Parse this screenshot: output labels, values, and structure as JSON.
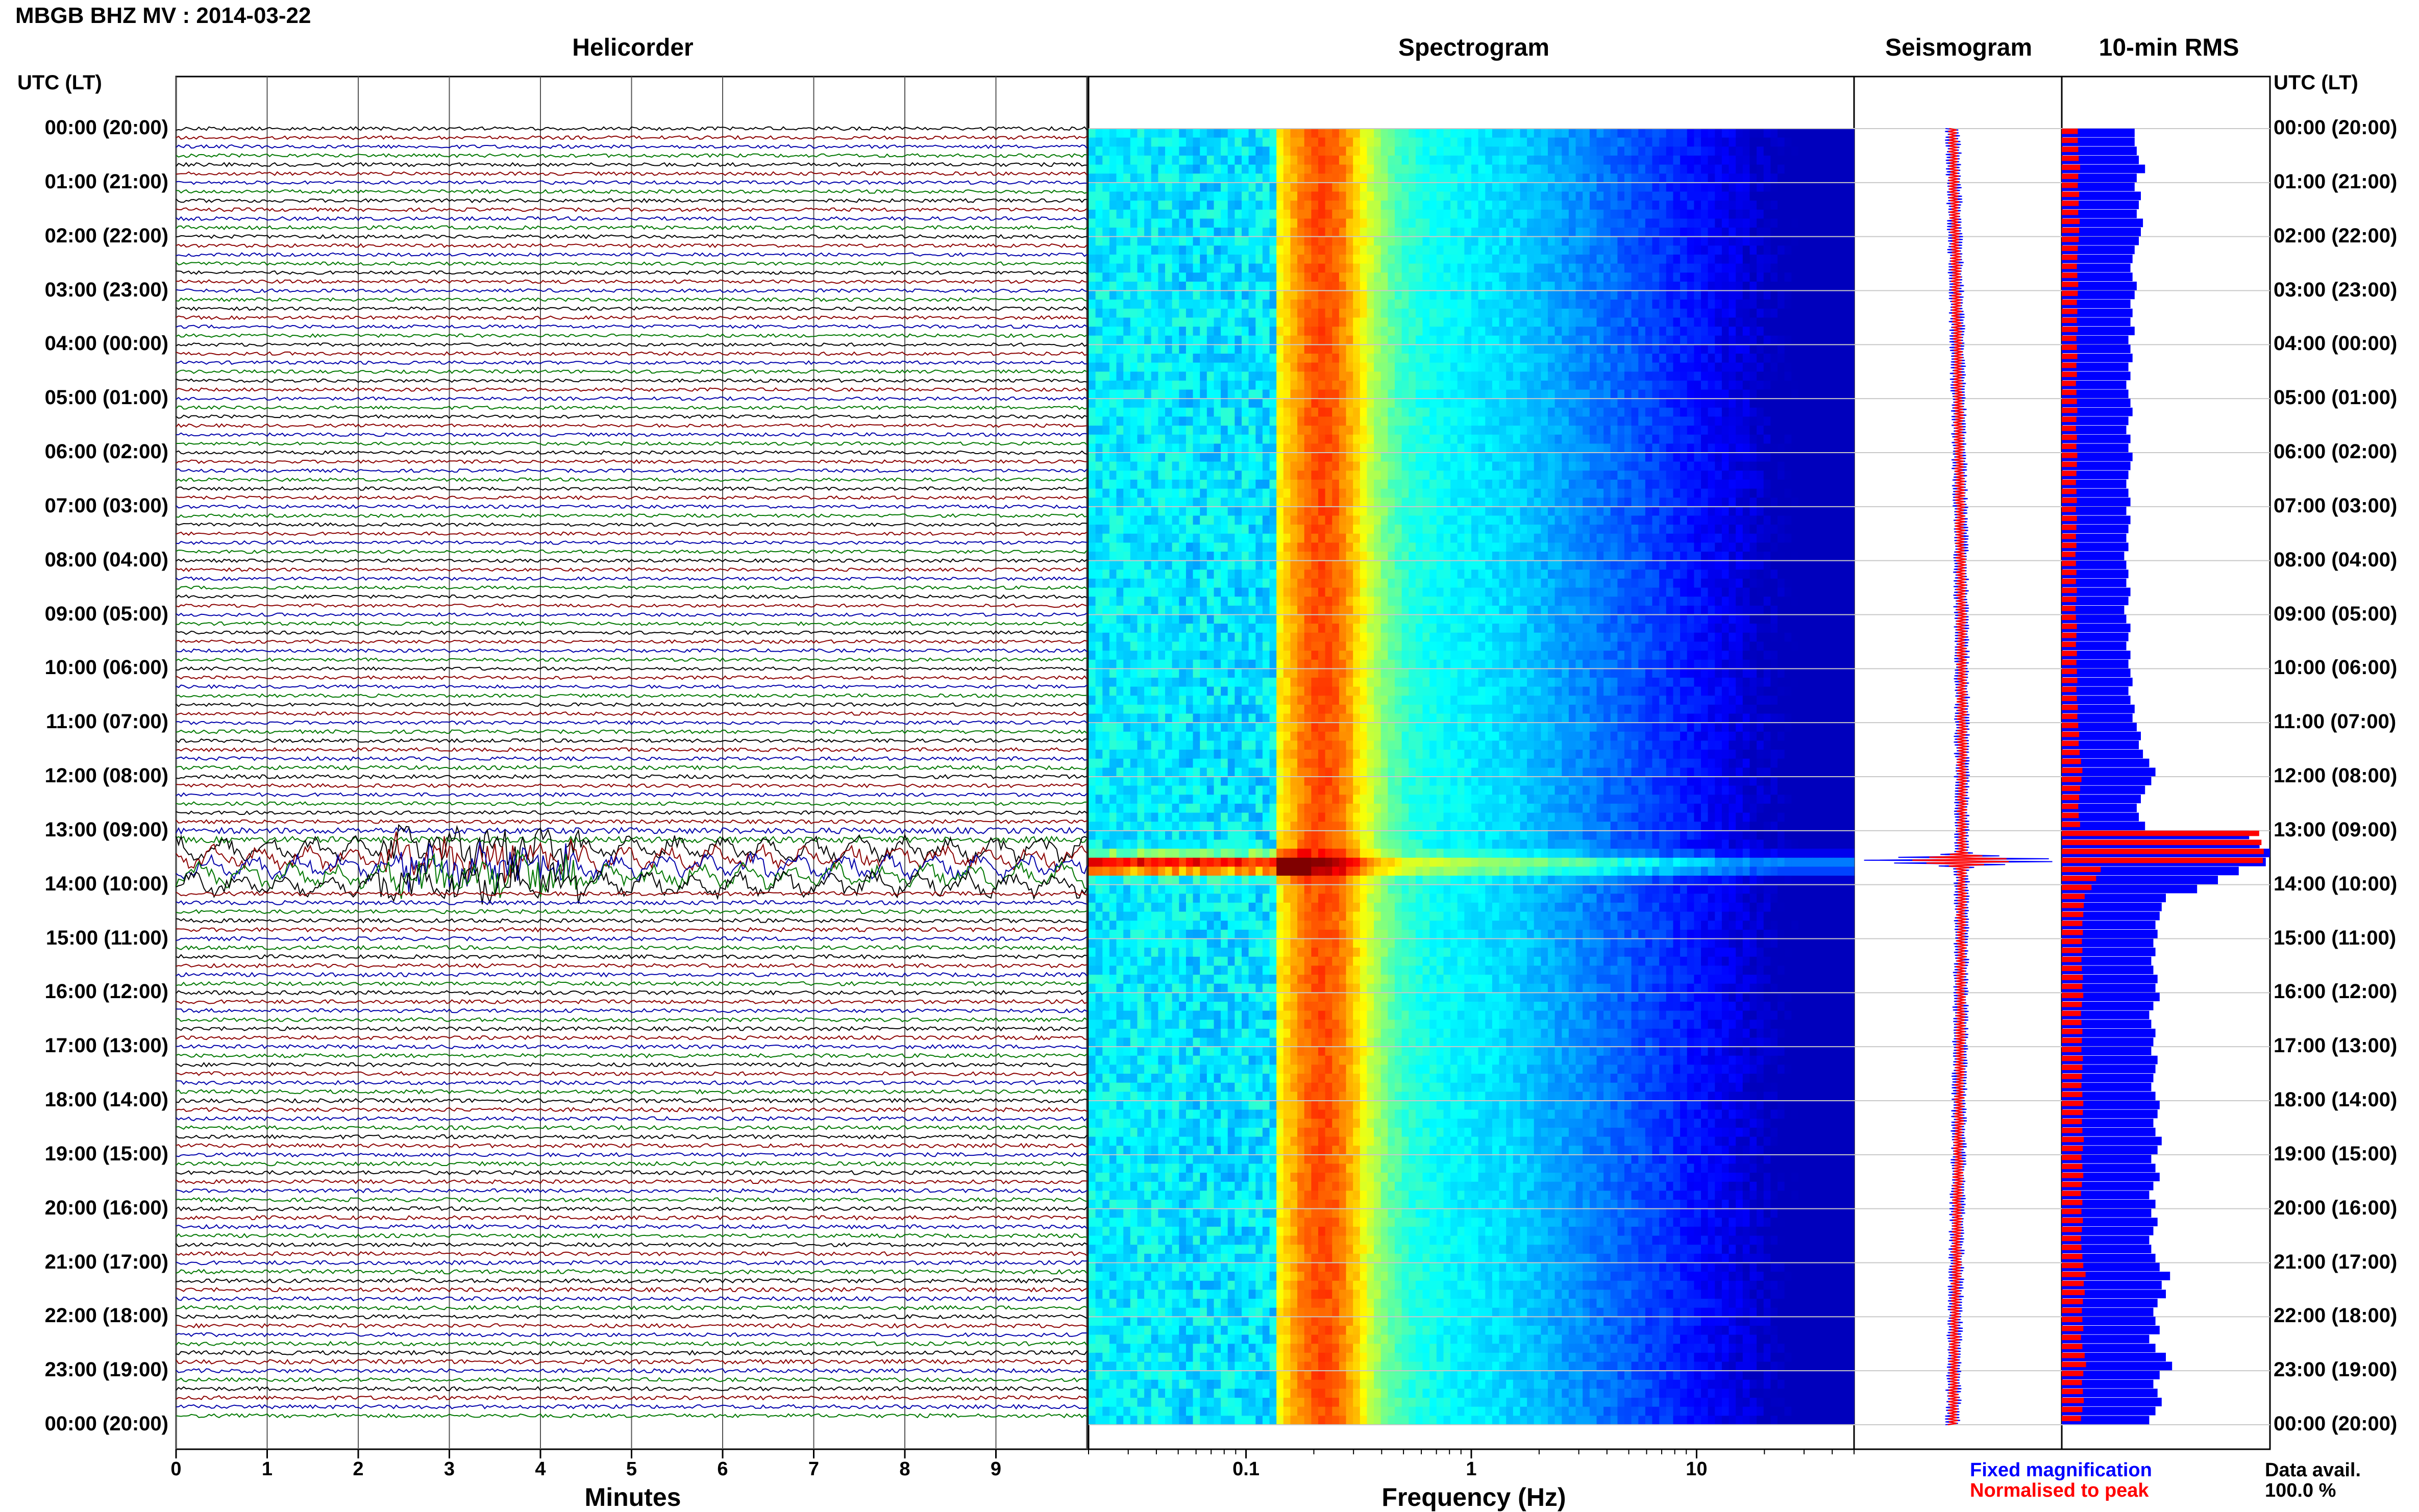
{
  "header": {
    "title": "MBGB BHZ MV : 2014-03-22"
  },
  "panels": {
    "helicorder": "Helicorder",
    "spectrogram": "Spectrogram",
    "seismogram": "Seismogram",
    "rms": "10-min RMS"
  },
  "time_axis": {
    "header_left": "UTC (LT)",
    "header_right": "UTC (LT)",
    "labels": [
      "00:00 (20:00)",
      "01:00 (21:00)",
      "02:00 (22:00)",
      "03:00 (23:00)",
      "04:00 (00:00)",
      "05:00 (01:00)",
      "06:00 (02:00)",
      "07:00 (03:00)",
      "08:00 (04:00)",
      "09:00 (05:00)",
      "10:00 (06:00)",
      "11:00 (07:00)",
      "12:00 (08:00)",
      "13:00 (09:00)",
      "14:00 (10:00)",
      "15:00 (11:00)",
      "16:00 (12:00)",
      "17:00 (13:00)",
      "18:00 (14:00)",
      "19:00 (15:00)",
      "20:00 (16:00)",
      "21:00 (17:00)",
      "22:00 (18:00)",
      "23:00 (19:00)",
      "00:00 (20:00)"
    ]
  },
  "helicorder_axis": {
    "xlabel": "Minutes",
    "ticks": [
      "0",
      "1",
      "2",
      "3",
      "4",
      "5",
      "6",
      "7",
      "8",
      "9"
    ]
  },
  "spectrogram_axis": {
    "xlabel": "Frequency (Hz)",
    "ticks": [
      "0.1",
      "1",
      "10"
    ]
  },
  "legend": {
    "fixed": "Fixed magnification",
    "normalised": "Normalised to peak"
  },
  "availability": {
    "label": "Data avail.",
    "value": "100.0 %"
  },
  "colors": {
    "fixed": "#0000ff",
    "normalised": "#ff0000",
    "trace_cycle": [
      "#000000",
      "#8b0000",
      "#0000aa",
      "#007700"
    ]
  },
  "chart_data": [
    {
      "type": "line",
      "name": "helicorder",
      "title": "Helicorder",
      "xlabel": "Minutes",
      "xlim": [
        0,
        10
      ],
      "rows": 144,
      "row_minutes": 10,
      "event_rows": [
        80,
        81,
        82,
        83,
        84
      ],
      "event_time_utc": "13:20-14:00"
    },
    {
      "type": "heatmap",
      "name": "spectrogram",
      "title": "Spectrogram",
      "xlabel": "Frequency (Hz)",
      "xscale": "log",
      "xlim": [
        0.02,
        50
      ],
      "ylim_hours": [
        0,
        24
      ],
      "dominant_band_hz": [
        0.15,
        0.3
      ],
      "event_hour": 13.5
    },
    {
      "type": "line",
      "name": "seismogram",
      "title": "Seismogram",
      "series": [
        "Fixed magnification",
        "Normalised to peak"
      ],
      "event_hour": 13.5
    },
    {
      "type": "bar",
      "name": "10-min RMS",
      "title": "10-min RMS",
      "orientation": "horizontal",
      "bins": 144,
      "series": [
        {
          "name": "Fixed magnification",
          "color": "#0000ff"
        },
        {
          "name": "Normalised to peak",
          "color": "#ff0000"
        }
      ],
      "rms_relative": [
        0.35,
        0.35,
        0.36,
        0.37,
        0.4,
        0.36,
        0.35,
        0.38,
        0.37,
        0.36,
        0.39,
        0.38,
        0.37,
        0.35,
        0.34,
        0.33,
        0.34,
        0.36,
        0.35,
        0.33,
        0.34,
        0.33,
        0.35,
        0.32,
        0.33,
        0.34,
        0.32,
        0.33,
        0.31,
        0.32,
        0.33,
        0.34,
        0.32,
        0.31,
        0.33,
        0.32,
        0.34,
        0.33,
        0.32,
        0.31,
        0.32,
        0.33,
        0.31,
        0.33,
        0.32,
        0.31,
        0.32,
        0.3,
        0.31,
        0.32,
        0.31,
        0.33,
        0.32,
        0.3,
        0.31,
        0.33,
        0.32,
        0.31,
        0.33,
        0.32,
        0.33,
        0.34,
        0.32,
        0.33,
        0.35,
        0.34,
        0.36,
        0.38,
        0.37,
        0.39,
        0.42,
        0.45,
        0.43,
        0.4,
        0.38,
        0.36,
        0.37,
        0.4,
        0.9,
        0.95,
        1.0,
        0.98,
        0.85,
        0.75,
        0.65,
        0.5,
        0.48,
        0.47,
        0.45,
        0.46,
        0.44,
        0.45,
        0.43,
        0.44,
        0.46,
        0.45,
        0.47,
        0.44,
        0.42,
        0.43,
        0.45,
        0.44,
        0.43,
        0.46,
        0.45,
        0.44,
        0.43,
        0.45,
        0.47,
        0.46,
        0.44,
        0.45,
        0.48,
        0.46,
        0.43,
        0.45,
        0.47,
        0.44,
        0.42,
        0.45,
        0.43,
        0.46,
        0.44,
        0.42,
        0.43,
        0.45,
        0.47,
        0.52,
        0.48,
        0.5,
        0.46,
        0.44,
        0.45,
        0.47,
        0.42,
        0.45,
        0.5,
        0.53,
        0.47,
        0.44,
        0.46,
        0.48,
        0.45,
        0.42
      ]
    }
  ]
}
